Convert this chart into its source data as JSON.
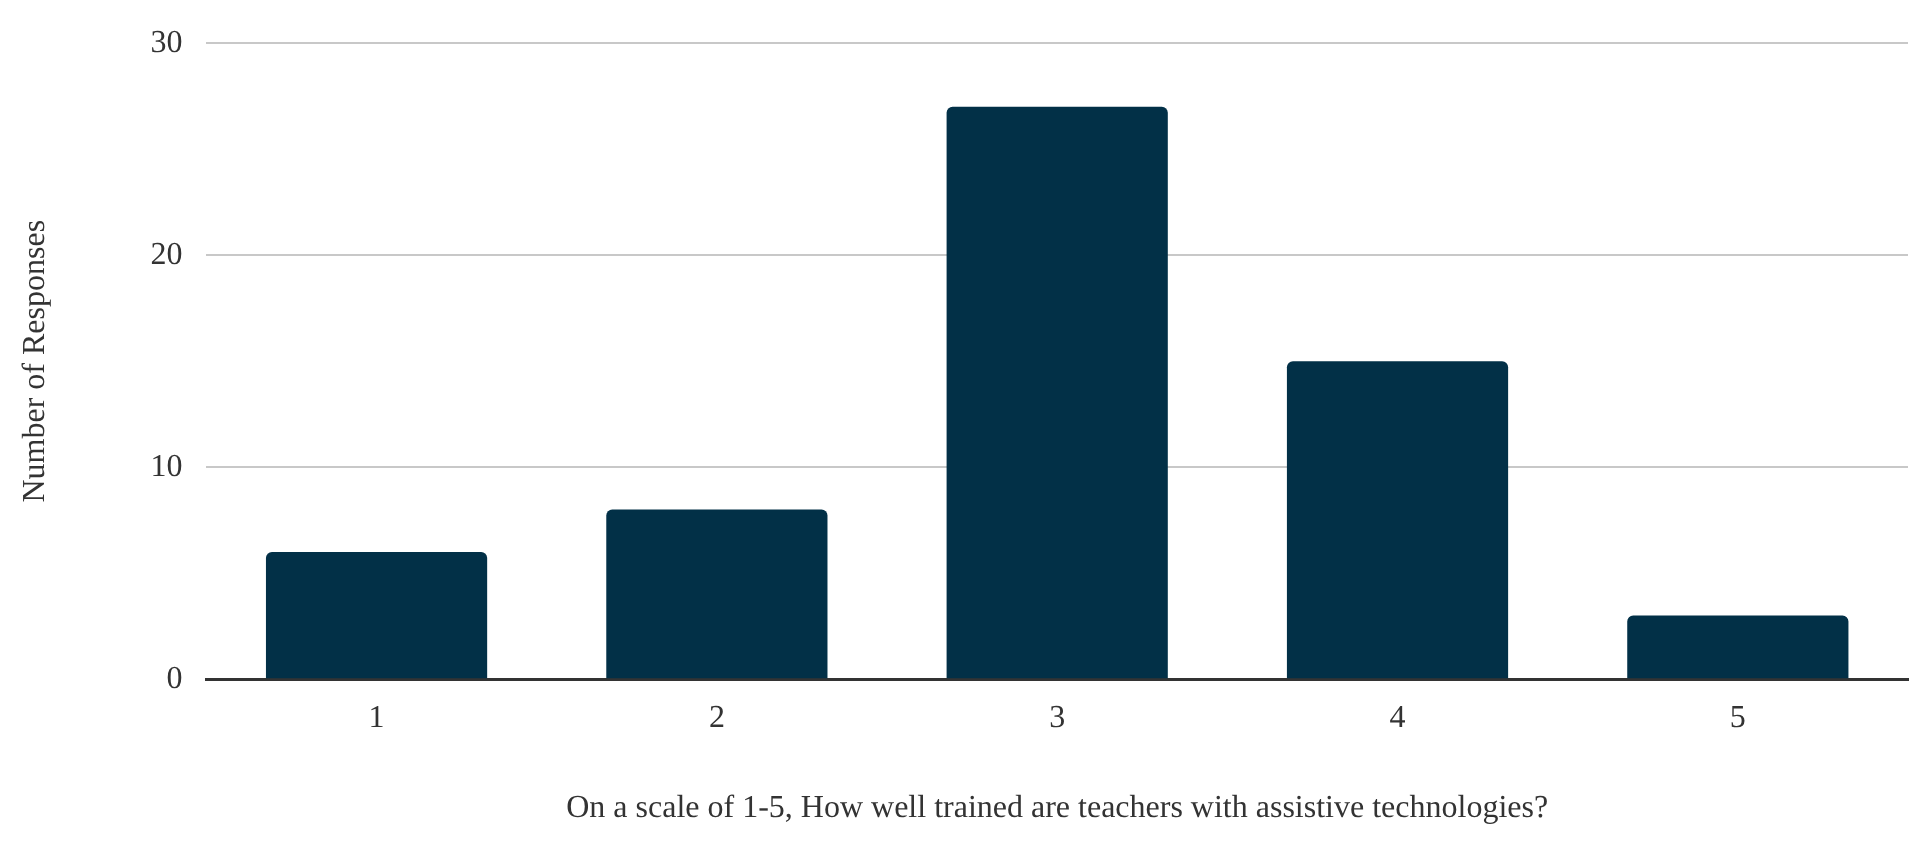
{
  "chart_data": {
    "type": "bar",
    "xlabel": "On a scale of 1-5, How well trained are teachers with assistive technologies?",
    "ylabel": "Number of Responses",
    "categories": [
      "1",
      "2",
      "3",
      "4",
      "5"
    ],
    "values": [
      6,
      8,
      27,
      15,
      3
    ],
    "color": "#023047",
    "ylim": [
      0,
      30
    ],
    "yticks": [
      0,
      10,
      20,
      30
    ],
    "grid": "y",
    "legend": false
  }
}
